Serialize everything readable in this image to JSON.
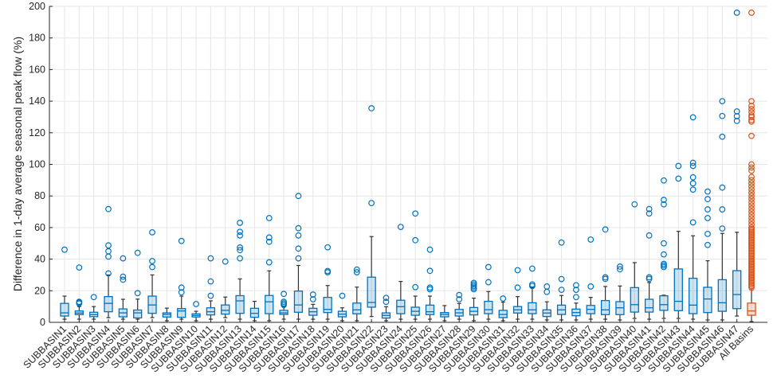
{
  "chart_data": {
    "type": "box",
    "title": "",
    "xlabel": "",
    "ylabel": "Difference in 1-day average seasonal peak flow (%)",
    "ylim": [
      0,
      200
    ],
    "yticks": [
      0,
      20,
      40,
      60,
      80,
      100,
      120,
      140,
      160,
      180,
      200
    ],
    "grid": true,
    "colors": {
      "basin": "#0072BD",
      "all": "#D95319",
      "axis": "#262626",
      "grid": "#E6E6E6",
      "whisker": "#333333"
    },
    "categories": [
      "SUBBASIN1",
      "SUBBASIN2",
      "SUBBASIN3",
      "SUBBASIN4",
      "SUBBASIN5",
      "SUBBASIN6",
      "SUBBASIN7",
      "SUBBASIN8",
      "SUBBASIN9",
      "SUBBASIN10",
      "SUBBASIN11",
      "SUBBASIN12",
      "SUBBASIN13",
      "SUBBASIN14",
      "SUBBASIN15",
      "SUBBASIN16",
      "SUBBASIN17",
      "SUBBASIN18",
      "SUBBASIN19",
      "SUBBASIN20",
      "SUBBASIN21",
      "SUBBASIN22",
      "SUBBASIN23",
      "SUBBASIN24",
      "SUBBASIN25",
      "SUBBASIN26",
      "SUBBASIN27",
      "SUBBASIN28",
      "SUBBASIN29",
      "SUBBASIN30",
      "SUBBASIN31",
      "SUBBASIN32",
      "SUBBASIN33",
      "SUBBASIN34",
      "SUBBASIN35",
      "SUBBASIN36",
      "SUBBASIN37",
      "SUBBASIN38",
      "SUBBASIN39",
      "SUBBASIN40",
      "SUBBASIN41",
      "SUBBASIN42",
      "SUBBASIN43",
      "SUBBASIN44",
      "SUBBASIN45",
      "SUBBASIN46",
      "SUBBASIN47",
      "All Basins"
    ],
    "boxes": [
      {
        "min": 2,
        "q1": 4,
        "median": 6,
        "q3": 12,
        "max": 16.6,
        "outliers": [
          46
        ]
      },
      {
        "min": 2,
        "q1": 4.9,
        "median": 5.9,
        "q3": 7.2,
        "max": 10,
        "outliers": [
          12,
          12.5,
          13,
          34.7
        ]
      },
      {
        "min": 2,
        "q1": 3.6,
        "median": 4.9,
        "q3": 6.4,
        "max": 10,
        "outliers": [
          16
        ]
      },
      {
        "min": 3,
        "q1": 6.7,
        "median": 12,
        "q3": 16.3,
        "max": 30,
        "outliers": [
          31,
          41.6,
          45,
          48.7,
          71.7
        ]
      },
      {
        "min": 2,
        "q1": 3.5,
        "median": 6,
        "q3": 8.5,
        "max": 14.6,
        "outliers": [
          27,
          28.9,
          40.5
        ]
      },
      {
        "min": 2,
        "q1": 2.8,
        "median": 6,
        "q3": 7.8,
        "max": 14.7,
        "outliers": [
          18.5,
          44
        ]
      },
      {
        "min": 3,
        "q1": 5.7,
        "median": 11,
        "q3": 16.6,
        "max": 30,
        "outliers": [
          35,
          38.8,
          57
        ]
      },
      {
        "min": 1,
        "q1": 3.4,
        "median": 5,
        "q3": 6,
        "max": 9,
        "outliers": []
      },
      {
        "min": 2,
        "q1": 3.2,
        "median": 7.2,
        "q3": 8.7,
        "max": 16.6,
        "outliers": [
          19,
          22,
          51.5
        ]
      },
      {
        "min": 1,
        "q1": 3.4,
        "median": 4.4,
        "q3": 5.4,
        "max": 7,
        "outliers": [
          11.6
        ]
      },
      {
        "min": 2,
        "q1": 4.7,
        "median": 6.7,
        "q3": 9.2,
        "max": 13.6,
        "outliers": [
          16.8,
          25.9,
          40.5
        ]
      },
      {
        "min": 3,
        "q1": 5.2,
        "median": 7.6,
        "q3": 11,
        "max": 16,
        "outliers": [
          38.5
        ]
      },
      {
        "min": 2,
        "q1": 5.7,
        "median": 13.6,
        "q3": 16.9,
        "max": 27.5,
        "outliers": [
          40.5,
          45.7,
          47.4,
          55,
          57.3,
          63
        ]
      },
      {
        "min": 1,
        "q1": 3.2,
        "median": 5.7,
        "q3": 8.9,
        "max": 13.3,
        "outliers": []
      },
      {
        "min": 1,
        "q1": 5.5,
        "median": 13,
        "q3": 17,
        "max": 32.6,
        "outliers": [
          38,
          51,
          53.7,
          66
        ]
      },
      {
        "min": 2,
        "q1": 5,
        "median": 6,
        "q3": 7.6,
        "max": 10,
        "outliers": [
          11,
          12,
          13,
          18
        ]
      },
      {
        "min": 2,
        "q1": 6.4,
        "median": 11,
        "q3": 19.8,
        "max": 36,
        "outliers": [
          40.5,
          46.7,
          55,
          59.6,
          80
        ]
      },
      {
        "min": 2,
        "q1": 4.5,
        "median": 6.7,
        "q3": 8.9,
        "max": 11.4,
        "outliers": [
          14.6,
          17.6
        ]
      },
      {
        "min": 2,
        "q1": 6.2,
        "median": 8.2,
        "q3": 15.8,
        "max": 23.3,
        "outliers": [
          31.7,
          32.5,
          47.5
        ]
      },
      {
        "min": 1,
        "q1": 3.5,
        "median": 5.2,
        "q3": 7,
        "max": 9.2,
        "outliers": [
          16.8
        ]
      },
      {
        "min": 1,
        "q1": 5.4,
        "median": 7.9,
        "q3": 12.2,
        "max": 22.3,
        "outliers": [
          31.7,
          33.4
        ]
      },
      {
        "min": 3.7,
        "q1": 9.6,
        "median": 12.6,
        "q3": 28.6,
        "max": 54.3,
        "outliers": [
          75.5,
          135.5
        ]
      },
      {
        "min": 1,
        "q1": 2.7,
        "median": 4.4,
        "q3": 6,
        "max": 9.9,
        "outliers": [
          13,
          15.5
        ]
      },
      {
        "min": 2,
        "q1": 5.5,
        "median": 9.9,
        "q3": 14,
        "max": 25.9,
        "outliers": [
          60.4
        ]
      },
      {
        "min": 2,
        "q1": 4.5,
        "median": 7,
        "q3": 9.6,
        "max": 16.6,
        "outliers": [
          22.3,
          52,
          68.9
        ]
      },
      {
        "min": 2,
        "q1": 4.9,
        "median": 6.7,
        "q3": 10.9,
        "max": 16.6,
        "outliers": [
          21,
          22,
          32.6,
          46
        ]
      },
      {
        "min": 1,
        "q1": 3.5,
        "median": 5,
        "q3": 6.2,
        "max": 10.6,
        "outliers": []
      },
      {
        "min": 2,
        "q1": 4,
        "median": 6,
        "q3": 8.2,
        "max": 12,
        "outliers": [
          14.6,
          17.3
        ]
      },
      {
        "min": 1,
        "q1": 4.7,
        "median": 7,
        "q3": 9.4,
        "max": 15.3,
        "outliers": [
          21,
          22,
          23,
          24,
          25
        ]
      },
      {
        "min": 2,
        "q1": 5.5,
        "median": 8,
        "q3": 13.3,
        "max": 19.5,
        "outliers": [
          25.4,
          35
        ]
      },
      {
        "min": 1,
        "q1": 3,
        "median": 5,
        "q3": 7.6,
        "max": 12.8,
        "outliers": [
          15.1
        ]
      },
      {
        "min": 2,
        "q1": 5.9,
        "median": 7.9,
        "q3": 10,
        "max": 16.3,
        "outliers": [
          22,
          33
        ]
      },
      {
        "min": 2,
        "q1": 5.5,
        "median": 7.9,
        "q3": 12.4,
        "max": 22,
        "outliers": [
          23,
          24,
          34
        ]
      },
      {
        "min": 1.5,
        "q1": 3.7,
        "median": 5.9,
        "q3": 7.9,
        "max": 13,
        "outliers": [
          19.3,
          22.7
        ]
      },
      {
        "min": 1.5,
        "q1": 5,
        "median": 7.9,
        "q3": 10.9,
        "max": 17,
        "outliers": [
          20.6,
          27.4,
          50.5
        ]
      },
      {
        "min": 1.5,
        "q1": 4.2,
        "median": 6.2,
        "q3": 8.4,
        "max": 12.2,
        "outliers": [
          16,
          20.6,
          23.5
        ]
      },
      {
        "min": 2,
        "q1": 5.5,
        "median": 8.2,
        "q3": 10.7,
        "max": 15.8,
        "outliers": [
          22.7,
          52.4
        ]
      },
      {
        "min": 2,
        "q1": 4.9,
        "median": 7.9,
        "q3": 13.8,
        "max": 22.7,
        "outliers": [
          27.5,
          28.5,
          58.8
        ]
      },
      {
        "min": 1.5,
        "q1": 4.9,
        "median": 9.2,
        "q3": 13.1,
        "max": 23,
        "outliers": [
          33.6,
          35.3
        ]
      },
      {
        "min": 2.5,
        "q1": 6.5,
        "median": 11.2,
        "q3": 22,
        "max": 37.8,
        "outliers": [
          74.7
        ]
      },
      {
        "min": 2,
        "q1": 6.5,
        "median": 9.2,
        "q3": 14.6,
        "max": 25.2,
        "outliers": [
          27.5,
          28.5,
          55,
          68.9,
          71.7
        ]
      },
      {
        "min": 2.5,
        "q1": 7.6,
        "median": 11.2,
        "q3": 16.8,
        "max": 17.2,
        "outliers": [
          35,
          36,
          37,
          43,
          50,
          74.7,
          77.5,
          89.8
        ]
      },
      {
        "min": 2.5,
        "q1": 7.4,
        "median": 13.3,
        "q3": 33.8,
        "max": 57.6,
        "outliers": [
          91,
          99
        ]
      },
      {
        "min": 2,
        "q1": 5.5,
        "median": 10.9,
        "q3": 27.9,
        "max": 54.8,
        "outliers": [
          63.3,
          84,
          88,
          91.8,
          99,
          101,
          129.8
        ]
      },
      {
        "min": 1.5,
        "q1": 6.2,
        "median": 14.8,
        "q3": 22.2,
        "max": 39,
        "outliers": [
          49,
          56,
          66,
          71.5,
          78,
          82.8
        ]
      },
      {
        "min": 1.5,
        "q1": 7,
        "median": 12.4,
        "q3": 27,
        "max": 56.3,
        "outliers": [
          59.4,
          71.5,
          85.3,
          117.5,
          130.6,
          140
        ]
      },
      {
        "min": 4,
        "q1": 8.7,
        "median": 17.6,
        "q3": 32.7,
        "max": 57,
        "outliers": [
          127.5,
          130.5,
          133.5,
          196
        ]
      },
      {
        "min": 0.5,
        "q1": 4.5,
        "median": 7.2,
        "q3": 12.2,
        "max": 20.6,
        "outliers": [
          22,
          23,
          24,
          25,
          26,
          27,
          28,
          29,
          30,
          31,
          32,
          33,
          34,
          35,
          36,
          37,
          38,
          39,
          40,
          41,
          42,
          43,
          44,
          45,
          46,
          47,
          48,
          49,
          50,
          51,
          52,
          53,
          54,
          55,
          56,
          57,
          58,
          59,
          60,
          62,
          64,
          66,
          68,
          70,
          72,
          74,
          76,
          78,
          80,
          82,
          84,
          86,
          88,
          90,
          92,
          96,
          98,
          100,
          118,
          127,
          128,
          130,
          131,
          133,
          135,
          137,
          140,
          196
        ]
      }
    ]
  }
}
